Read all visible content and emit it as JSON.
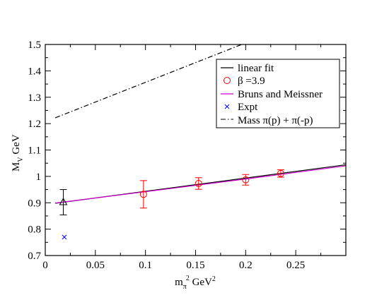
{
  "chart_data": {
    "type": "scatter",
    "x_axis": {
      "label_main": "m",
      "label_sub": "π",
      "label_sup": "2",
      "label_unit": " GeV",
      "label_unit_sup": "2",
      "range": [
        0,
        0.3
      ],
      "ticks": [
        0,
        0.05,
        0.1,
        0.15,
        0.2,
        0.25
      ],
      "tick_labels": [
        "0",
        "0.05",
        "0.1",
        "0.15",
        "0.2",
        "0.25"
      ]
    },
    "y_axis": {
      "label_main": "M",
      "label_sub": "V",
      "label_unit": " GeV",
      "range": [
        0.7,
        1.5
      ],
      "ticks": [
        0.7,
        0.8,
        0.9,
        1.0,
        1.1,
        1.2,
        1.3,
        1.4,
        1.5
      ],
      "tick_labels": [
        "0.7",
        "0.8",
        "0.9",
        "1",
        "1.1",
        "1.2",
        "1.3",
        "1.4",
        "1.5"
      ]
    },
    "grid": false,
    "legend_position": "top-right",
    "legend": [
      {
        "key": "linear_fit",
        "text": "linear fit",
        "symbol": "line",
        "color": "#000000"
      },
      {
        "key": "beta",
        "text": "β  =3.9",
        "symbol": "circle",
        "color": "#ff0000"
      },
      {
        "key": "bruns",
        "text": "Bruns and Meissner",
        "symbol": "line",
        "color": "#cc00cc"
      },
      {
        "key": "expt",
        "text": "Expt",
        "symbol": "cross",
        "color": "#0000ff"
      },
      {
        "key": "mass",
        "text": "Mass  π(p) + π(-p)",
        "symbol": "dashdot",
        "color": "#000000"
      }
    ],
    "series": [
      {
        "key": "beta",
        "type": "scatter",
        "marker": "circle",
        "color": "#ff0000",
        "points": [
          {
            "x": 0.098,
            "y": 0.932,
            "err": 0.052
          },
          {
            "x": 0.153,
            "y": 0.973,
            "err": 0.022
          },
          {
            "x": 0.2,
            "y": 0.987,
            "err": 0.02
          },
          {
            "x": 0.235,
            "y": 1.011,
            "err": 0.014
          }
        ]
      },
      {
        "key": "extrapolated",
        "type": "scatter",
        "marker": "triangle",
        "color": "#000000",
        "points": [
          {
            "x": 0.018,
            "y": 0.902,
            "err": 0.048
          }
        ]
      },
      {
        "key": "expt",
        "type": "scatter",
        "marker": "cross",
        "color": "#0000ff",
        "points": [
          {
            "x": 0.019,
            "y": 0.77
          }
        ]
      },
      {
        "key": "linear_fit",
        "type": "line",
        "style": "solid",
        "color": "#000000",
        "points": [
          {
            "x": 0.01,
            "y": 0.898
          },
          {
            "x": 0.3,
            "y": 1.044
          }
        ]
      },
      {
        "key": "bruns",
        "type": "line",
        "style": "solid",
        "color": "#cc00cc",
        "points": [
          {
            "x": 0.01,
            "y": 0.899
          },
          {
            "x": 0.1,
            "y": 0.942
          },
          {
            "x": 0.2,
            "y": 0.99
          },
          {
            "x": 0.3,
            "y": 1.04
          }
        ]
      },
      {
        "key": "mass",
        "type": "line",
        "style": "dashdot",
        "color": "#000000",
        "points": [
          {
            "x": 0.01,
            "y": 1.222
          },
          {
            "x": 0.196,
            "y": 1.5
          }
        ]
      }
    ]
  }
}
